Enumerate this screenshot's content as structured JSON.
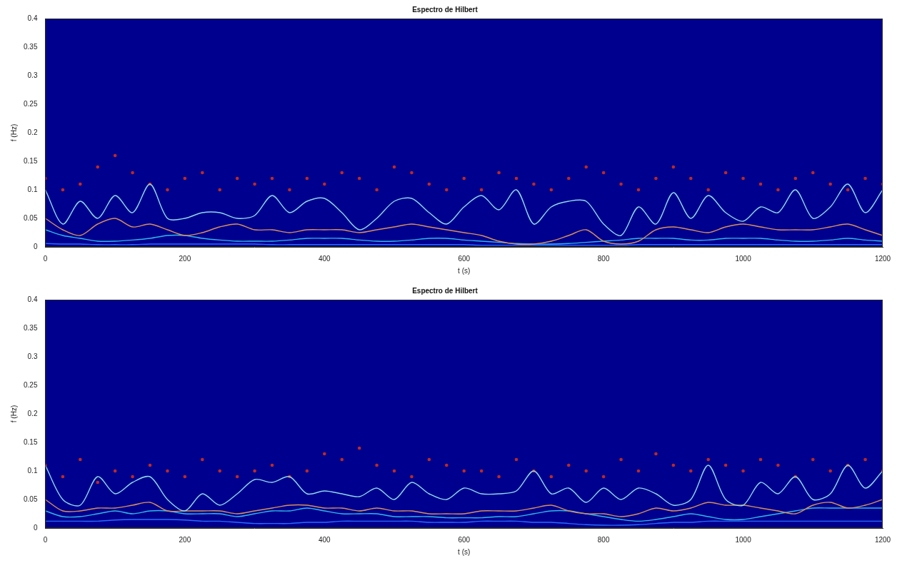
{
  "chart_data": [
    {
      "type": "line",
      "title": "Espectro de Hilbert",
      "x_label": "t (s)",
      "y_label": "f (Hz)",
      "xlim": [
        0,
        1200
      ],
      "xticks": [
        0,
        200,
        400,
        600,
        800,
        1000,
        1200
      ],
      "ylim": [
        0,
        0.4
      ],
      "yticks": [
        0,
        0.05,
        0.1,
        0.15,
        0.2,
        0.25,
        0.3,
        0.35,
        0.4
      ],
      "grid": false,
      "x": [
        0,
        25,
        50,
        75,
        100,
        125,
        150,
        175,
        200,
        225,
        250,
        275,
        300,
        325,
        350,
        375,
        400,
        425,
        450,
        475,
        500,
        525,
        550,
        575,
        600,
        625,
        650,
        675,
        700,
        725,
        750,
        775,
        800,
        825,
        850,
        875,
        900,
        925,
        950,
        975,
        1000,
        1025,
        1050,
        1075,
        1100,
        1125,
        1150,
        1175,
        1200
      ],
      "series": [
        {
          "color": "#8fd8e8",
          "line_style": "solid",
          "marker": "none",
          "values": [
            0.1,
            0.04,
            0.08,
            0.05,
            0.09,
            0.06,
            0.11,
            0.05,
            0.05,
            0.06,
            0.06,
            0.05,
            0.055,
            0.09,
            0.06,
            0.08,
            0.085,
            0.06,
            0.03,
            0.05,
            0.08,
            0.085,
            0.06,
            0.04,
            0.07,
            0.09,
            0.065,
            0.1,
            0.04,
            0.07,
            0.08,
            0.08,
            0.04,
            0.02,
            0.07,
            0.04,
            0.095,
            0.05,
            0.09,
            0.06,
            0.045,
            0.07,
            0.06,
            0.1,
            0.05,
            0.07,
            0.11,
            0.06,
            0.1
          ]
        },
        {
          "color": "#d8905a",
          "line_style": "solid",
          "marker": "none",
          "values": [
            0.05,
            0.03,
            0.02,
            0.04,
            0.05,
            0.035,
            0.04,
            0.03,
            0.02,
            0.025,
            0.035,
            0.04,
            0.03,
            0.03,
            0.025,
            0.03,
            0.03,
            0.03,
            0.025,
            0.03,
            0.035,
            0.04,
            0.035,
            0.03,
            0.025,
            0.02,
            0.01,
            0.005,
            0.005,
            0.01,
            0.02,
            0.03,
            0.01,
            0.005,
            0.01,
            0.03,
            0.035,
            0.03,
            0.025,
            0.035,
            0.04,
            0.035,
            0.03,
            0.03,
            0.03,
            0.035,
            0.04,
            0.03,
            0.02
          ]
        },
        {
          "color": "#30b8e8",
          "line_style": "solid",
          "marker": "none",
          "values": [
            0.03,
            0.02,
            0.015,
            0.01,
            0.01,
            0.012,
            0.015,
            0.02,
            0.02,
            0.015,
            0.012,
            0.01,
            0.01,
            0.01,
            0.012,
            0.015,
            0.015,
            0.015,
            0.012,
            0.01,
            0.01,
            0.012,
            0.015,
            0.015,
            0.012,
            0.01,
            0.008,
            0.006,
            0.005,
            0.005,
            0.006,
            0.008,
            0.01,
            0.012,
            0.015,
            0.015,
            0.015,
            0.012,
            0.012,
            0.015,
            0.015,
            0.015,
            0.012,
            0.01,
            0.01,
            0.012,
            0.015,
            0.012,
            0.01
          ]
        },
        {
          "color": "#2a6cff",
          "line_style": "solid",
          "marker": "none",
          "values": [
            0.006,
            0.005,
            0.005,
            0.004,
            0.004,
            0.004,
            0.005,
            0.005,
            0.005,
            0.005,
            0.005,
            0.005,
            0.005,
            0.004,
            0.004,
            0.004,
            0.004,
            0.004,
            0.004,
            0.004,
            0.004,
            0.004,
            0.004,
            0.004,
            0.004,
            0.003,
            0.003,
            0.003,
            0.003,
            0.003,
            0.003,
            0.003,
            0.003,
            0.003,
            0.004,
            0.004,
            0.004,
            0.004,
            0.004,
            0.004,
            0.004,
            0.004,
            0.004,
            0.004,
            0.004,
            0.004,
            0.004,
            0.004,
            0.004
          ]
        },
        {
          "color": "#c02a20",
          "line_style": "none",
          "marker": "dot",
          "values": [
            0.12,
            0.1,
            0.11,
            0.14,
            0.16,
            0.13,
            0.11,
            0.1,
            0.12,
            0.13,
            0.1,
            0.12,
            0.11,
            0.12,
            0.1,
            0.12,
            0.11,
            0.13,
            0.12,
            0.1,
            0.14,
            0.13,
            0.11,
            0.1,
            0.12,
            0.1,
            0.13,
            0.12,
            0.11,
            0.1,
            0.12,
            0.14,
            0.13,
            0.11,
            0.1,
            0.12,
            0.14,
            0.12,
            0.1,
            0.13,
            0.12,
            0.11,
            0.1,
            0.12,
            0.13,
            0.11,
            0.1,
            0.12,
            0.11
          ]
        }
      ]
    },
    {
      "type": "line",
      "title": "Espectro de Hilbert",
      "x_label": "t (s)",
      "y_label": "f (Hz)",
      "xlim": [
        0,
        1200
      ],
      "xticks": [
        0,
        200,
        400,
        600,
        800,
        1000,
        1200
      ],
      "ylim": [
        0,
        0.4
      ],
      "yticks": [
        0,
        0.05,
        0.1,
        0.15,
        0.2,
        0.25,
        0.3,
        0.35,
        0.4
      ],
      "grid": false,
      "x": [
        0,
        25,
        50,
        75,
        100,
        125,
        150,
        175,
        200,
        225,
        250,
        275,
        300,
        325,
        350,
        375,
        400,
        425,
        450,
        475,
        500,
        525,
        550,
        575,
        600,
        625,
        650,
        675,
        700,
        725,
        750,
        775,
        800,
        825,
        850,
        875,
        900,
        925,
        950,
        975,
        1000,
        1025,
        1050,
        1075,
        1100,
        1125,
        1150,
        1175,
        1200
      ],
      "series": [
        {
          "color": "#8fd8e8",
          "line_style": "solid",
          "marker": "none",
          "values": [
            0.11,
            0.05,
            0.04,
            0.09,
            0.06,
            0.08,
            0.09,
            0.05,
            0.03,
            0.06,
            0.04,
            0.06,
            0.085,
            0.08,
            0.09,
            0.06,
            0.065,
            0.06,
            0.055,
            0.07,
            0.05,
            0.08,
            0.06,
            0.05,
            0.07,
            0.06,
            0.06,
            0.065,
            0.1,
            0.06,
            0.07,
            0.045,
            0.07,
            0.05,
            0.07,
            0.06,
            0.04,
            0.05,
            0.11,
            0.05,
            0.04,
            0.08,
            0.06,
            0.09,
            0.05,
            0.06,
            0.11,
            0.07,
            0.1
          ]
        },
        {
          "color": "#d8905a",
          "line_style": "solid",
          "marker": "none",
          "values": [
            0.05,
            0.03,
            0.03,
            0.035,
            0.035,
            0.04,
            0.045,
            0.03,
            0.03,
            0.03,
            0.03,
            0.025,
            0.03,
            0.035,
            0.04,
            0.04,
            0.035,
            0.035,
            0.03,
            0.035,
            0.03,
            0.03,
            0.025,
            0.025,
            0.025,
            0.03,
            0.03,
            0.03,
            0.035,
            0.04,
            0.03,
            0.025,
            0.025,
            0.02,
            0.025,
            0.035,
            0.03,
            0.035,
            0.045,
            0.04,
            0.04,
            0.035,
            0.03,
            0.025,
            0.04,
            0.045,
            0.035,
            0.04,
            0.05
          ]
        },
        {
          "color": "#30b8e8",
          "line_style": "solid",
          "marker": "none",
          "values": [
            0.03,
            0.02,
            0.02,
            0.025,
            0.03,
            0.025,
            0.03,
            0.03,
            0.025,
            0.025,
            0.025,
            0.02,
            0.025,
            0.03,
            0.03,
            0.035,
            0.03,
            0.025,
            0.025,
            0.025,
            0.02,
            0.02,
            0.02,
            0.018,
            0.018,
            0.018,
            0.02,
            0.02,
            0.025,
            0.03,
            0.03,
            0.025,
            0.02,
            0.015,
            0.012,
            0.015,
            0.02,
            0.025,
            0.02,
            0.015,
            0.015,
            0.02,
            0.025,
            0.03,
            0.035,
            0.035,
            0.035,
            0.035,
            0.035
          ]
        },
        {
          "color": "#2a6cff",
          "line_style": "solid",
          "marker": "none",
          "values": [
            0.012,
            0.012,
            0.012,
            0.012,
            0.014,
            0.015,
            0.015,
            0.015,
            0.014,
            0.012,
            0.012,
            0.01,
            0.008,
            0.008,
            0.008,
            0.01,
            0.01,
            0.012,
            0.012,
            0.012,
            0.012,
            0.012,
            0.01,
            0.01,
            0.01,
            0.012,
            0.012,
            0.012,
            0.01,
            0.01,
            0.008,
            0.006,
            0.005,
            0.005,
            0.006,
            0.008,
            0.01,
            0.01,
            0.012,
            0.012,
            0.012,
            0.012,
            0.012,
            0.012,
            0.012,
            0.012,
            0.012,
            0.012,
            0.012
          ]
        },
        {
          "color": "#c02a20",
          "line_style": "none",
          "marker": "dot",
          "values": [
            0.11,
            0.09,
            0.12,
            0.08,
            0.1,
            0.09,
            0.11,
            0.1,
            0.09,
            0.12,
            0.1,
            0.09,
            0.1,
            0.11,
            0.09,
            0.1,
            0.13,
            0.12,
            0.14,
            0.11,
            0.1,
            0.09,
            0.12,
            0.11,
            0.1,
            0.1,
            0.09,
            0.12,
            0.1,
            0.09,
            0.11,
            0.1,
            0.09,
            0.12,
            0.1,
            0.13,
            0.11,
            0.1,
            0.12,
            0.11,
            0.1,
            0.12,
            0.11,
            0.09,
            0.12,
            0.1,
            0.11,
            0.12,
            0.1
          ]
        }
      ]
    }
  ]
}
